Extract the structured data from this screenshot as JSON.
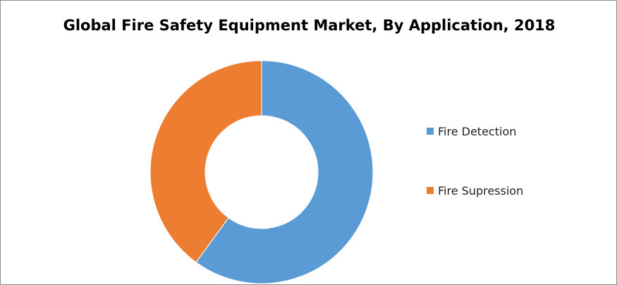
{
  "chart_data": {
    "type": "pie",
    "title": "Global Fire Safety Equipment Market, By Application, 2018",
    "categories": [
      "Fire Detection",
      "Fire Supression"
    ],
    "values": [
      60,
      40
    ],
    "colors": [
      "#5B9BD5",
      "#ED7D31"
    ],
    "donut": true,
    "legend": "right"
  }
}
